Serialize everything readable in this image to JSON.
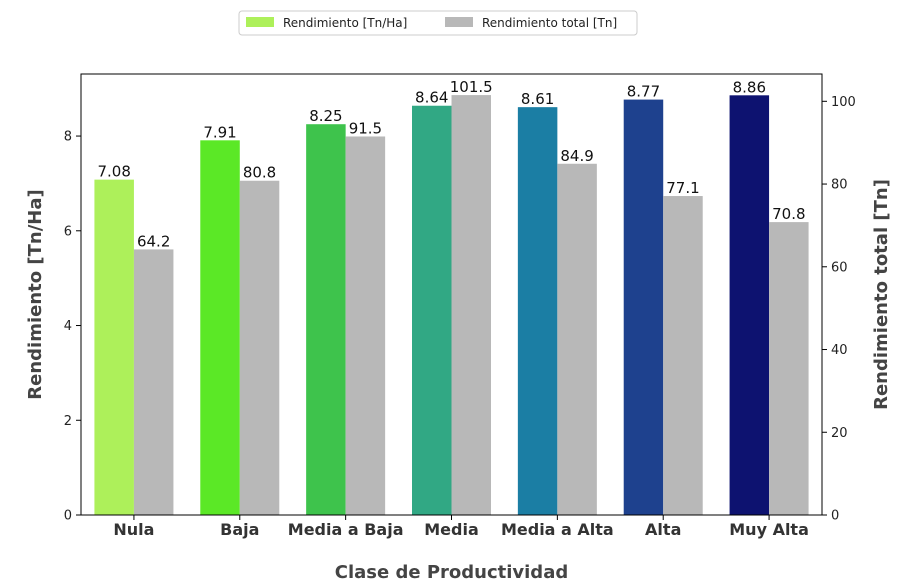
{
  "chart_data": {
    "type": "bar",
    "categories": [
      "Nula",
      "Baja",
      "Media a Baja",
      "Media",
      "Media a Alta",
      "Alta",
      "Muy Alta"
    ],
    "series": [
      {
        "name": "Rendimiento [Tn/Ha]",
        "axis": "left",
        "values": [
          7.08,
          7.91,
          8.25,
          8.64,
          8.61,
          8.77,
          8.86
        ],
        "labels": [
          "7.08",
          "7.91",
          "8.25",
          "8.64",
          "8.61",
          "8.77",
          "8.86"
        ],
        "colors": [
          "#adf05a",
          "#5be826",
          "#3ec34c",
          "#31a884",
          "#1b7ea4",
          "#1e418e",
          "#0d1270"
        ],
        "legend_color": "#adf05a"
      },
      {
        "name": "Rendimiento total [Tn]",
        "axis": "right",
        "values": [
          64.2,
          80.8,
          91.5,
          101.5,
          84.9,
          77.1,
          70.8
        ],
        "labels": [
          "64.2",
          "80.8",
          "91.5",
          "101.5",
          "84.9",
          "77.1",
          "70.8"
        ],
        "colors": [
          "#b8b8b8",
          "#b8b8b8",
          "#b8b8b8",
          "#b8b8b8",
          "#b8b8b8",
          "#b8b8b8",
          "#b8b8b8"
        ],
        "legend_color": "#b8b8b8"
      }
    ],
    "xlabel": "Clase de Productividad",
    "ylabel_left": "Rendimiento [Tn/Ha]",
    "ylabel_right": "Rendimiento total [Tn]",
    "ylim_left": [
      0,
      9.31
    ],
    "ylim_right": [
      0,
      106.6
    ],
    "yticks_left": [
      "0",
      "2",
      "4",
      "6",
      "8"
    ],
    "yticks_right": [
      "0",
      "20",
      "40",
      "60",
      "80",
      "100"
    ],
    "grid": false,
    "legend_position": "top-center"
  }
}
